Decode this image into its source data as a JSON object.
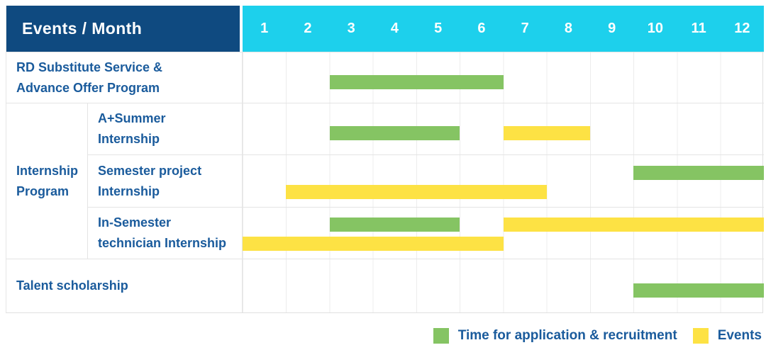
{
  "chart_data": {
    "type": "bar",
    "variant": "gantt-schedule-table",
    "title": "Events / Month",
    "months": [
      "1",
      "2",
      "3",
      "4",
      "5",
      "6",
      "7",
      "8",
      "9",
      "10",
      "11",
      "12"
    ],
    "x_axis": {
      "label": "Month",
      "range": [
        1,
        12
      ]
    },
    "legend_position": "bottom-right",
    "grid": true,
    "colors": {
      "header_bg": "#0f4a80",
      "months_bg": "#1dd0ec",
      "label_text": "#1a5b9c",
      "green": "#85c463",
      "yellow": "#fde244"
    },
    "rows": [
      {
        "label": "RD Substitute Service &\nAdvance Offer Program",
        "lines": [
          [
            {
              "color": "green",
              "from": 3,
              "to": 6
            }
          ]
        ]
      },
      {
        "group": "Internship\nProgram",
        "label": "A+Summer\nInternship",
        "lines": [
          [
            {
              "color": "green",
              "from": 3,
              "to": 5
            },
            {
              "color": "yellow",
              "from": 7,
              "to": 8
            }
          ]
        ]
      },
      {
        "label": "Semester project\nInternship",
        "lines": [
          [
            {
              "color": "green",
              "from": 10,
              "to": 12
            }
          ],
          [
            {
              "color": "yellow",
              "from": 2,
              "to": 7
            }
          ]
        ]
      },
      {
        "label": "In-Semester\ntechnician Internship",
        "lines": [
          [
            {
              "color": "green",
              "from": 3,
              "to": 5
            },
            {
              "color": "yellow",
              "from": 7,
              "to": 12
            }
          ],
          [
            {
              "color": "yellow",
              "from": 1,
              "to": 6
            }
          ]
        ]
      },
      {
        "label": "Talent scholarship",
        "lines": [
          [
            {
              "color": "green",
              "from": 10,
              "to": 12
            }
          ]
        ]
      }
    ],
    "legend": [
      {
        "swatch": "green",
        "label": "Time for application & recruitment"
      },
      {
        "swatch": "yellow",
        "label": "Events"
      }
    ]
  }
}
